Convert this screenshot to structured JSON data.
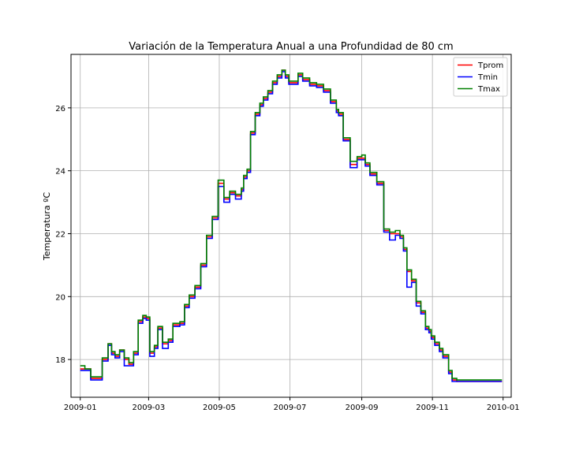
{
  "chart_data": {
    "type": "line",
    "title": "Variación de la Temperatura Anual a una Profundidad de 80 cm",
    "xlabel": "",
    "ylabel": "Temperatura ºC",
    "xlim": [
      "2008-12-24",
      "2010-01-08"
    ],
    "ylim": [
      16.8,
      27.7
    ],
    "x_ticks": [
      "2009-01-01",
      "2009-03-01",
      "2009-05-01",
      "2009-07-01",
      "2009-09-01",
      "2009-11-01",
      "2010-01-01"
    ],
    "x_tick_labels": [
      "2009-01",
      "2009-03",
      "2009-05",
      "2009-07",
      "2009-09",
      "2009-11",
      "2010-01"
    ],
    "y_ticks": [
      18,
      20,
      22,
      24,
      26
    ],
    "y_tick_labels": [
      "18",
      "20",
      "22",
      "24",
      "26"
    ],
    "grid": true,
    "legend_position": "top-right",
    "x": [
      "2009-01-01",
      "2009-01-05",
      "2009-01-10",
      "2009-01-15",
      "2009-01-20",
      "2009-01-25",
      "2009-01-28",
      "2009-01-31",
      "2009-02-04",
      "2009-02-08",
      "2009-02-12",
      "2009-02-16",
      "2009-02-20",
      "2009-02-24",
      "2009-02-27",
      "2009-03-02",
      "2009-03-06",
      "2009-03-09",
      "2009-03-13",
      "2009-03-18",
      "2009-03-22",
      "2009-03-25",
      "2009-03-28",
      "2009-04-01",
      "2009-04-05",
      "2009-04-10",
      "2009-04-15",
      "2009-04-20",
      "2009-04-25",
      "2009-04-30",
      "2009-05-05",
      "2009-05-10",
      "2009-05-15",
      "2009-05-20",
      "2009-05-22",
      "2009-05-25",
      "2009-05-28",
      "2009-06-01",
      "2009-06-05",
      "2009-06-08",
      "2009-06-12",
      "2009-06-16",
      "2009-06-20",
      "2009-06-24",
      "2009-06-27",
      "2009-06-30",
      "2009-07-04",
      "2009-07-08",
      "2009-07-12",
      "2009-07-18",
      "2009-07-24",
      "2009-07-30",
      "2009-08-05",
      "2009-08-10",
      "2009-08-12",
      "2009-08-16",
      "2009-08-22",
      "2009-08-28",
      "2009-09-01",
      "2009-09-04",
      "2009-09-08",
      "2009-09-14",
      "2009-09-20",
      "2009-09-25",
      "2009-09-30",
      "2009-10-04",
      "2009-10-07",
      "2009-10-10",
      "2009-10-14",
      "2009-10-18",
      "2009-10-22",
      "2009-10-26",
      "2009-10-29",
      "2009-10-31",
      "2009-11-03",
      "2009-11-07",
      "2009-11-10",
      "2009-11-15",
      "2009-11-18",
      "2009-11-22",
      "2009-11-26",
      "2009-12-01",
      "2009-12-06",
      "2009-12-12",
      "2009-12-18",
      "2009-12-24",
      "2009-12-28",
      "2009-12-31"
    ],
    "series": [
      {
        "name": "Tprom",
        "color": "#ff0000",
        "values": [
          17.7,
          17.7,
          17.4,
          17.4,
          18.0,
          18.5,
          18.2,
          18.1,
          18.3,
          18.0,
          17.85,
          18.2,
          19.2,
          19.35,
          19.3,
          18.2,
          18.4,
          19.0,
          18.5,
          18.6,
          19.1,
          19.1,
          19.15,
          19.7,
          20.0,
          20.3,
          21.0,
          21.9,
          22.5,
          23.6,
          23.1,
          23.3,
          23.2,
          23.4,
          23.8,
          24.0,
          25.2,
          25.8,
          26.1,
          26.3,
          26.5,
          26.8,
          27.0,
          27.2,
          27.0,
          26.8,
          26.8,
          27.05,
          26.9,
          26.75,
          26.7,
          26.55,
          26.2,
          25.9,
          25.8,
          25.0,
          24.2,
          24.4,
          24.4,
          24.2,
          23.9,
          23.6,
          22.1,
          22.0,
          22.0,
          21.9,
          21.5,
          20.8,
          20.5,
          19.8,
          19.5,
          19.0,
          18.9,
          18.7,
          18.5,
          18.3,
          18.1,
          17.6,
          17.35,
          17.3,
          17.3,
          17.3,
          17.3,
          17.3,
          17.3,
          17.3,
          17.3,
          17.3
        ]
      },
      {
        "name": "Tmin",
        "color": "#0000ff",
        "values": [
          17.65,
          17.65,
          17.35,
          17.35,
          17.95,
          18.45,
          18.15,
          18.05,
          18.25,
          17.8,
          17.8,
          18.15,
          19.15,
          19.3,
          19.25,
          18.1,
          18.35,
          18.95,
          18.35,
          18.55,
          19.05,
          19.05,
          19.1,
          19.65,
          19.95,
          20.25,
          20.95,
          21.85,
          22.45,
          23.5,
          23.0,
          23.25,
          23.1,
          23.35,
          23.75,
          23.95,
          25.15,
          25.75,
          26.05,
          26.25,
          26.45,
          26.75,
          26.95,
          27.15,
          26.95,
          26.75,
          26.75,
          27.0,
          26.85,
          26.7,
          26.65,
          26.5,
          26.15,
          25.85,
          25.75,
          24.95,
          24.1,
          24.35,
          24.35,
          24.15,
          23.85,
          23.55,
          22.05,
          21.8,
          21.95,
          21.85,
          21.45,
          20.3,
          20.45,
          19.7,
          19.45,
          18.95,
          18.85,
          18.65,
          18.45,
          18.25,
          18.05,
          17.55,
          17.3,
          17.3,
          17.3,
          17.3,
          17.3,
          17.3,
          17.3,
          17.3,
          17.3,
          17.3
        ]
      },
      {
        "name": "Tmax",
        "color": "#008000",
        "values": [
          17.8,
          17.7,
          17.45,
          17.45,
          18.05,
          18.5,
          18.25,
          18.15,
          18.3,
          18.05,
          17.9,
          18.25,
          19.25,
          19.4,
          19.35,
          18.25,
          18.45,
          19.05,
          18.55,
          18.65,
          19.15,
          19.15,
          19.2,
          19.75,
          20.05,
          20.35,
          21.05,
          21.95,
          22.55,
          23.7,
          23.15,
          23.35,
          23.25,
          23.45,
          23.85,
          24.05,
          25.25,
          25.85,
          26.15,
          26.35,
          26.55,
          26.85,
          27.05,
          27.2,
          27.05,
          26.85,
          26.85,
          27.1,
          26.95,
          26.8,
          26.75,
          26.6,
          26.25,
          25.95,
          25.85,
          25.05,
          24.3,
          24.45,
          24.5,
          24.25,
          23.95,
          23.65,
          22.15,
          22.05,
          22.1,
          21.95,
          21.55,
          20.85,
          20.55,
          19.85,
          19.55,
          19.05,
          18.95,
          18.75,
          18.55,
          18.35,
          18.15,
          17.65,
          17.4,
          17.35,
          17.35,
          17.35,
          17.35,
          17.35,
          17.35,
          17.35,
          17.35,
          17.35
        ]
      }
    ]
  }
}
